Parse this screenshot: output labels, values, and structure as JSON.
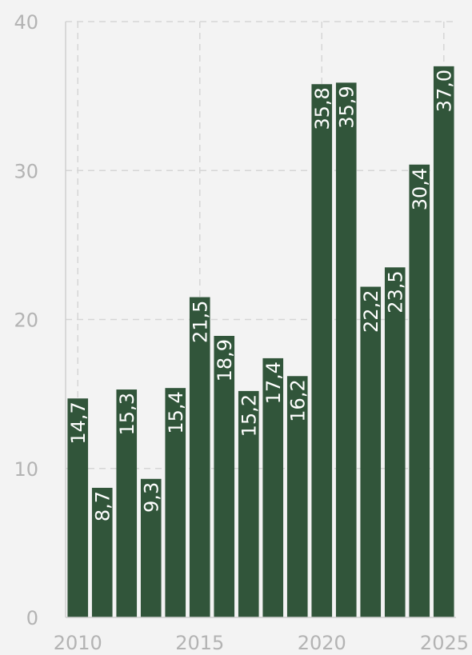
{
  "chart_data": {
    "type": "bar",
    "title": "",
    "xlabel": "",
    "ylabel": "",
    "x": [
      2010,
      2011,
      2012,
      2013,
      2014,
      2015,
      2016,
      2017,
      2018,
      2019,
      2020,
      2021,
      2022,
      2023,
      2024,
      2025
    ],
    "values": [
      14.7,
      8.7,
      15.3,
      9.3,
      15.4,
      21.5,
      18.9,
      15.2,
      17.4,
      16.2,
      35.8,
      35.9,
      22.2,
      23.5,
      30.4,
      37.0
    ],
    "value_labels": [
      "14,7",
      "8,7",
      "15,3",
      "9,3",
      "15,4",
      "21,5",
      "18,9",
      "15,2",
      "17,4",
      "16,2",
      "35,8",
      "35,9",
      "22,2",
      "23,5",
      "30,4",
      "37,0"
    ],
    "x_ticks": [
      2010,
      2015,
      2020,
      2025
    ],
    "x_tick_labels": [
      "2010",
      "2015",
      "2020",
      "2025"
    ],
    "y_ticks": [
      0,
      10,
      20,
      30,
      40
    ],
    "y_tick_labels": [
      "0",
      "10",
      "20",
      "30",
      "40"
    ],
    "ylim": [
      0,
      40
    ],
    "xlim": [
      2009.5,
      2025.5
    ],
    "grid": true,
    "legend": "none",
    "colors": {
      "bar": "#31553a",
      "background": "#f3f3f3",
      "grid": "#d6d6d6",
      "tick_text": "#b3b3b3",
      "label_text": "#ffffff"
    }
  }
}
